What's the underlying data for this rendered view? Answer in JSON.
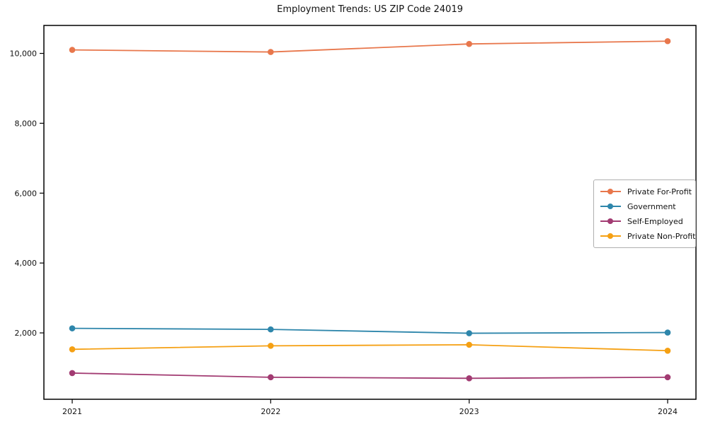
{
  "figure": {
    "background": "#ffffff",
    "axis_color": "#000000",
    "text_color": "#111111",
    "legend_border_color": "#b0b0b0"
  },
  "chart_data": {
    "type": "line",
    "title": "Employment Trends: US ZIP Code 24019",
    "xlabel": "",
    "ylabel": "",
    "x": [
      2021,
      2022,
      2023,
      2024
    ],
    "x_tick_labels": [
      "2021",
      "2022",
      "2023",
      "2024"
    ],
    "series": [
      {
        "name": "Private For-Profit",
        "color": "#E8774C",
        "values": [
          10100,
          10040,
          10270,
          10350
        ]
      },
      {
        "name": "Government",
        "color": "#2E86AB",
        "values": [
          2130,
          2100,
          1990,
          2010
        ]
      },
      {
        "name": "Self-Employed",
        "color": "#A23B72",
        "values": [
          850,
          730,
          700,
          730
        ]
      },
      {
        "name": "Private Non-Profit",
        "color": "#F5A013",
        "values": [
          1530,
          1630,
          1660,
          1490
        ]
      }
    ],
    "ylim": [
      100,
      10800
    ],
    "yticks": [
      2000,
      4000,
      6000,
      8000,
      10000
    ],
    "ytick_labels": [
      "2,000",
      "4,000",
      "6,000",
      "8,000",
      "10,000"
    ],
    "grid": false,
    "marker": "circle",
    "legend_position": "center-right"
  }
}
